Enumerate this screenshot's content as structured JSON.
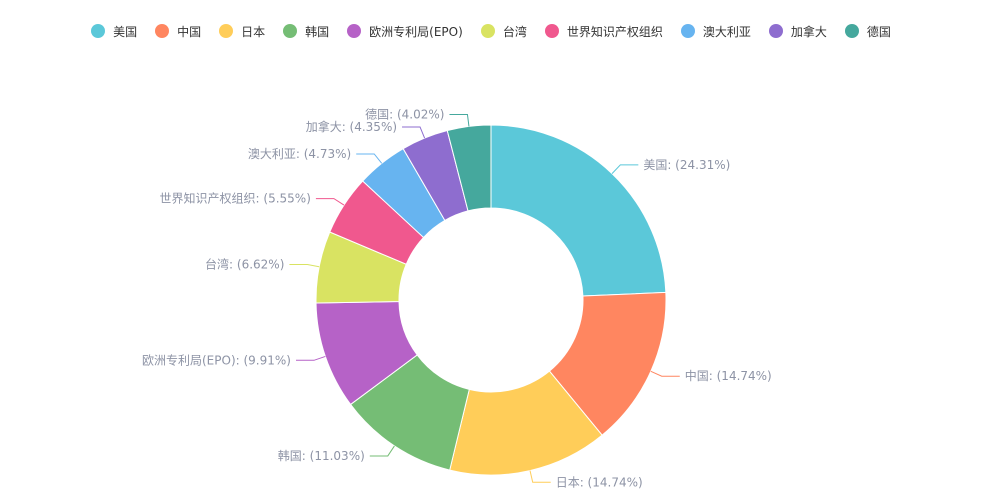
{
  "chart_data": {
    "type": "pie",
    "title": "",
    "legend_position": "top-center",
    "label_format": "{name}: ({percent}%)",
    "slices": [
      {
        "name": "美国",
        "value": 24.31,
        "color": "#5bc8d9"
      },
      {
        "name": "中国",
        "value": 14.74,
        "color": "#ff8660"
      },
      {
        "name": "日本",
        "value": 14.74,
        "color": "#ffcd59"
      },
      {
        "name": "韩国",
        "value": 11.03,
        "color": "#75bd75"
      },
      {
        "name": "欧洲专利局(EPO)",
        "value": 9.91,
        "color": "#b662c7"
      },
      {
        "name": "台湾",
        "value": 6.62,
        "color": "#d9e362"
      },
      {
        "name": "世界知识产权组织",
        "value": 5.55,
        "color": "#f0588e"
      },
      {
        "name": "澳大利亚",
        "value": 4.73,
        "color": "#67b4f0"
      },
      {
        "name": "加拿大",
        "value": 4.35,
        "color": "#8e6dcf"
      },
      {
        "name": "德国",
        "value": 4.02,
        "color": "#45a89d"
      }
    ]
  }
}
